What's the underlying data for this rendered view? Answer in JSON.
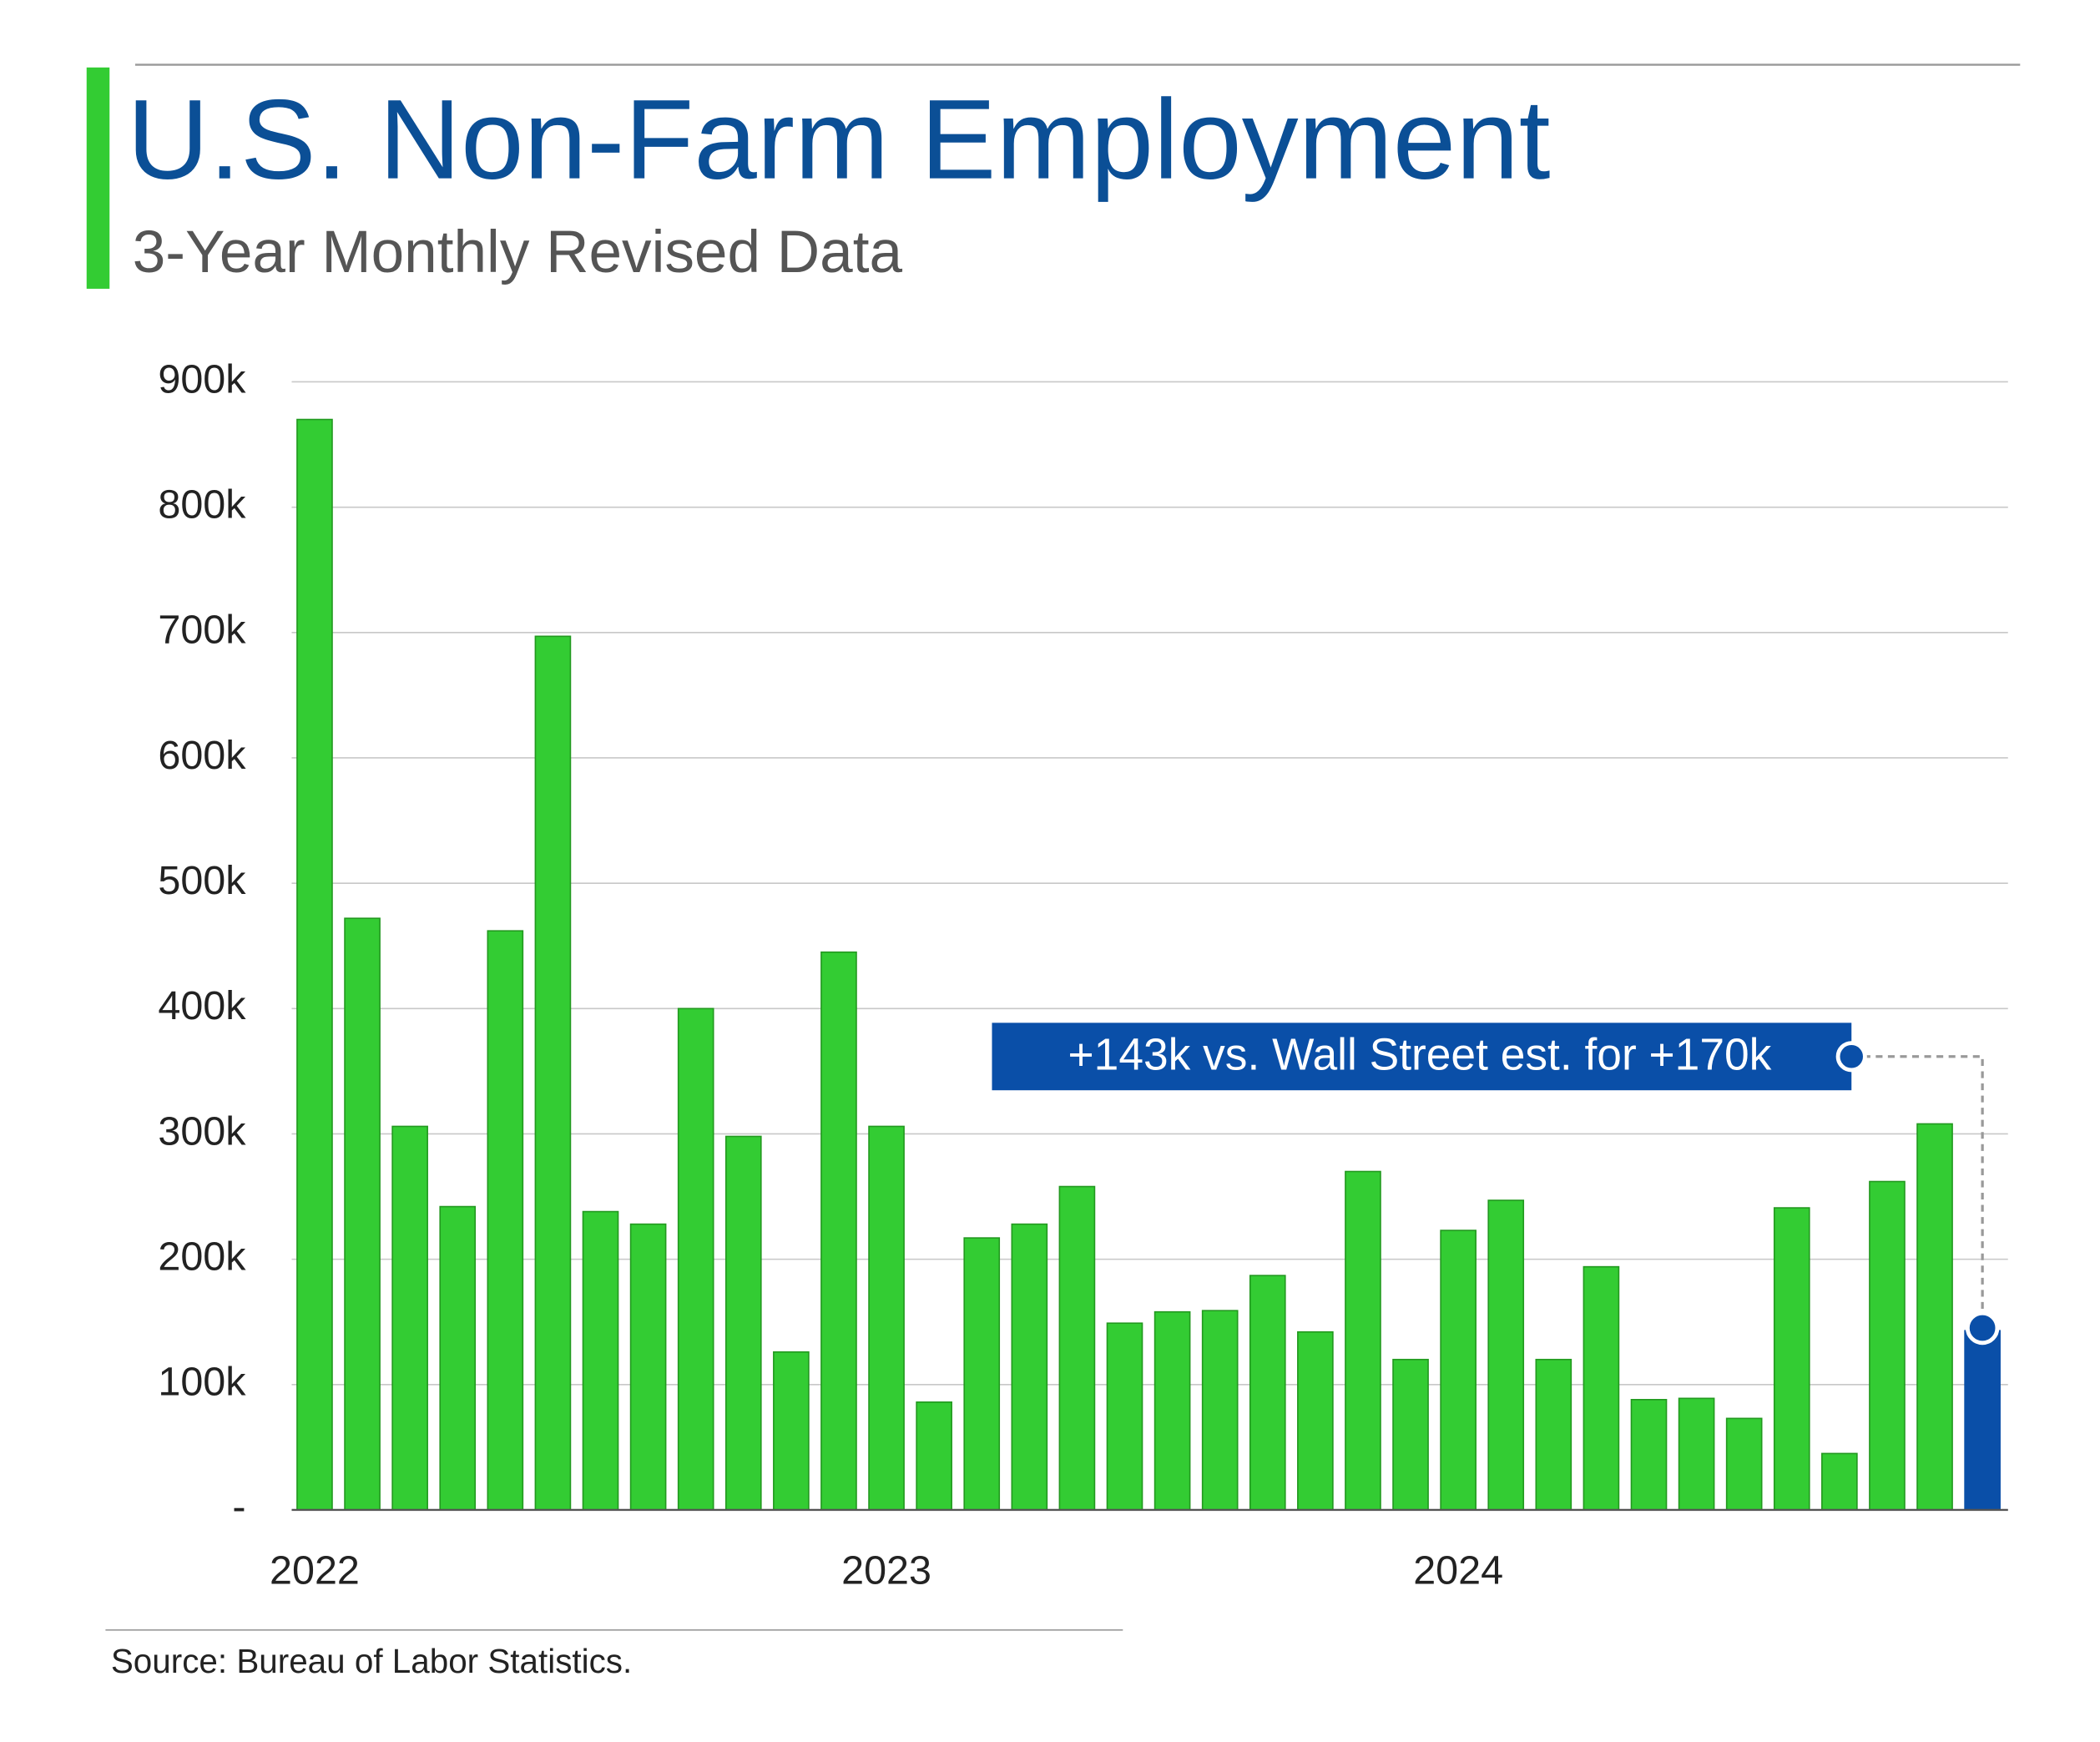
{
  "chart_data": {
    "type": "bar",
    "title": "U.S. Non-Farm Employment",
    "subtitle": "3-Year Monthly Revised Data",
    "source": "Source: Bureau of Labor Statistics.",
    "annotation": "+143k vs. Wall Street est. for +170k",
    "categories": [
      "2022",
      null,
      null,
      null,
      null,
      null,
      null,
      null,
      null,
      null,
      null,
      null,
      "2023",
      null,
      null,
      null,
      null,
      null,
      null,
      null,
      null,
      null,
      null,
      null,
      "2024",
      null,
      null,
      null,
      null,
      null,
      null,
      null,
      null,
      null,
      null,
      null
    ],
    "values": [
      870000,
      472000,
      306000,
      242000,
      462000,
      697000,
      238000,
      228000,
      400000,
      298000,
      126000,
      445000,
      306000,
      86000,
      217000,
      228000,
      258000,
      149000,
      158000,
      159000,
      187000,
      142000,
      270000,
      120000,
      223000,
      247000,
      120000,
      194000,
      88000,
      89000,
      73000,
      241000,
      45000,
      262000,
      308000,
      143000
    ],
    "colors": [
      "#33cc33",
      "#33cc33",
      "#33cc33",
      "#33cc33",
      "#33cc33",
      "#33cc33",
      "#33cc33",
      "#33cc33",
      "#33cc33",
      "#33cc33",
      "#33cc33",
      "#33cc33",
      "#33cc33",
      "#33cc33",
      "#33cc33",
      "#33cc33",
      "#33cc33",
      "#33cc33",
      "#33cc33",
      "#33cc33",
      "#33cc33",
      "#33cc33",
      "#33cc33",
      "#33cc33",
      "#33cc33",
      "#33cc33",
      "#33cc33",
      "#33cc33",
      "#33cc33",
      "#33cc33",
      "#33cc33",
      "#33cc33",
      "#33cc33",
      "#33cc33",
      "#33cc33",
      "#0a4fa8"
    ],
    "ylim": [
      0,
      900000
    ],
    "yticks": [
      {
        "value": 0,
        "label": "-"
      },
      {
        "value": 100000,
        "label": "100k"
      },
      {
        "value": 200000,
        "label": "200k"
      },
      {
        "value": 300000,
        "label": "300k"
      },
      {
        "value": 400000,
        "label": "400k"
      },
      {
        "value": 500000,
        "label": "500k"
      },
      {
        "value": 600000,
        "label": "600k"
      },
      {
        "value": 700000,
        "label": "700k"
      },
      {
        "value": 800000,
        "label": "800k"
      },
      {
        "value": 900000,
        "label": "900k"
      }
    ],
    "grid": true
  }
}
